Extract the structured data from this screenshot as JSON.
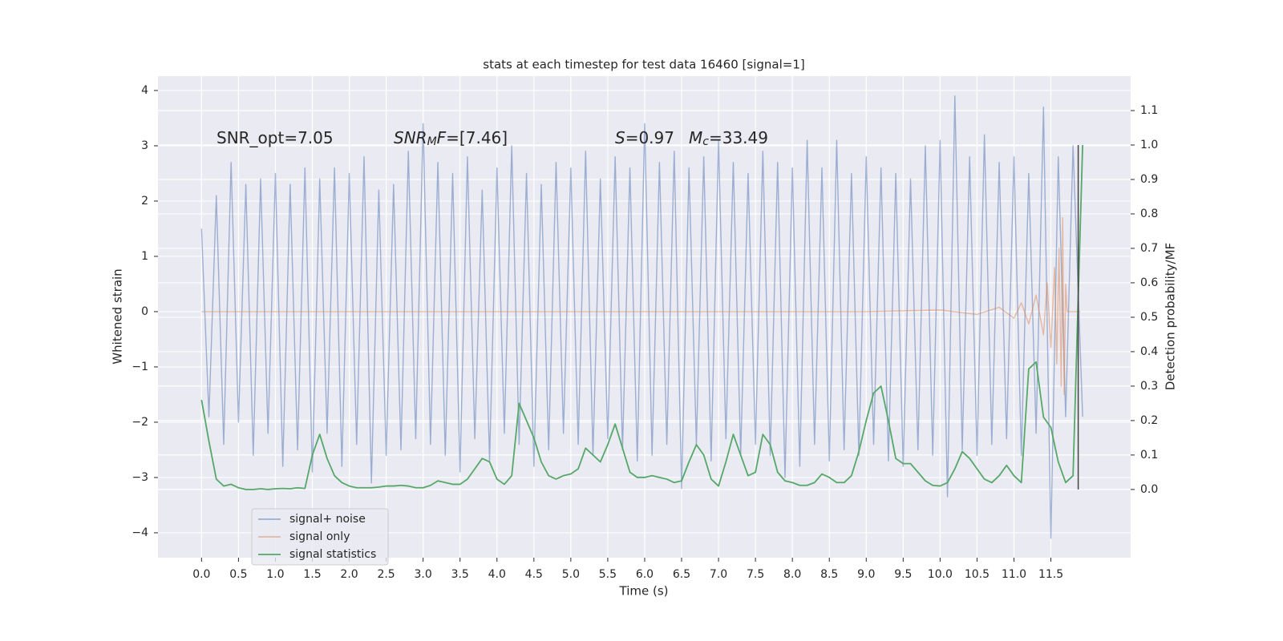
{
  "chart_data": {
    "type": "line",
    "title": "stats at each timestep for test data 16460 [signal=1]",
    "xlabel": "Time (s)",
    "ylabel": "Whitened strain",
    "y2label": "Detection probability/MF",
    "grid": true,
    "legend": "lower left",
    "xlim": [
      -0.59,
      12.58
    ],
    "ylim": [
      -4.45,
      4.26
    ],
    "y2lim": [
      -0.198,
      1.2
    ],
    "xticks": [
      {
        "value": 0,
        "label": "0.0"
      },
      0.5,
      {
        "value": 1,
        "label": "1.0"
      },
      1.5,
      {
        "value": 2,
        "label": "2.0"
      },
      2.5,
      {
        "value": 3,
        "label": "3.0"
      },
      3.5,
      {
        "value": 4,
        "label": "4.0"
      },
      4.5,
      {
        "value": 5,
        "label": "5.0"
      },
      5.5,
      {
        "value": 6,
        "label": "6.0"
      },
      6.5,
      {
        "value": 7,
        "label": "7.0"
      },
      7.5,
      {
        "value": 8,
        "label": "8.0"
      },
      8.5,
      {
        "value": 9,
        "label": "9.0"
      },
      9.5,
      {
        "value": 10,
        "label": "10.0"
      },
      10.5,
      {
        "value": 11,
        "label": "11.0"
      },
      11.5
    ],
    "yticks": [
      {
        "value": -4,
        "label": "−4"
      },
      {
        "value": -3,
        "label": "−3"
      },
      {
        "value": -2,
        "label": "−2"
      },
      {
        "value": -1,
        "label": "−1"
      },
      0,
      1,
      2,
      3,
      4
    ],
    "y2ticks": [
      {
        "value": 0,
        "label": "0.0"
      },
      0.1,
      0.2,
      0.3,
      0.4,
      0.5,
      0.6,
      0.7,
      0.8,
      0.9,
      {
        "value": 1,
        "label": "1.0"
      },
      1.1
    ],
    "x": [
      0,
      0.1,
      0.2,
      0.3,
      0.4,
      0.5,
      0.6,
      0.7,
      0.8,
      0.9,
      1,
      1.1,
      1.2,
      1.3,
      1.4,
      1.5,
      1.6,
      1.7,
      1.8,
      1.9,
      2,
      2.1,
      2.2,
      2.3,
      2.4,
      2.5,
      2.6,
      2.7,
      2.8,
      2.9,
      3,
      3.1,
      3.2,
      3.3,
      3.4,
      3.5,
      3.6,
      3.7,
      3.8,
      3.9,
      4,
      4.1,
      4.2,
      4.3,
      4.4,
      4.5,
      4.6,
      4.7,
      4.8,
      4.9,
      5,
      5.1,
      5.2,
      5.3,
      5.4,
      5.5,
      5.6,
      5.7,
      5.8,
      5.9,
      6,
      6.1,
      6.2,
      6.3,
      6.4,
      6.5,
      6.6,
      6.7,
      6.8,
      6.9,
      7,
      7.1,
      7.2,
      7.3,
      7.4,
      7.5,
      7.6,
      7.7,
      7.8,
      7.9,
      8,
      8.1,
      8.2,
      8.3,
      8.4,
      8.5,
      8.6,
      8.7,
      8.8,
      8.9,
      9,
      9.1,
      9.2,
      9.3,
      9.4,
      9.5,
      9.6,
      9.7,
      9.8,
      9.9,
      10,
      10.1,
      10.2,
      10.3,
      10.4,
      10.5,
      10.6,
      10.7,
      10.8,
      10.9,
      11,
      11.1,
      11.2,
      11.3,
      11.4,
      11.5,
      11.6,
      11.7,
      11.8,
      11.93
    ],
    "series": [
      {
        "name": "signal+ noise",
        "color": "#4c72b0",
        "values": [
          1.5,
          -1.9,
          2.1,
          -2.4,
          2.7,
          -2.0,
          2.3,
          -2.6,
          2.4,
          -2.2,
          2.5,
          -2.8,
          2.3,
          -2.5,
          2.6,
          -2.9,
          2.4,
          -2.2,
          2.6,
          -2.8,
          2.5,
          -2.4,
          2.8,
          -3.1,
          2.2,
          -2.6,
          2.3,
          -2.5,
          2.9,
          -2.3,
          3.4,
          -2.4,
          2.7,
          -2.6,
          2.5,
          -2.9,
          2.8,
          -2.3,
          2.2,
          -2.7,
          2.6,
          -2.2,
          3.0,
          -2.4,
          2.5,
          -2.8,
          2.3,
          -2.5,
          2.7,
          -2.2,
          2.6,
          -2.4,
          2.9,
          -2.6,
          2.4,
          -2.3,
          2.8,
          -2.5,
          2.6,
          -2.7,
          3.4,
          -2.6,
          2.7,
          -2.4,
          2.9,
          -3.2,
          2.6,
          -2.4,
          2.8,
          -2.7,
          3.1,
          -2.3,
          2.7,
          -2.6,
          2.5,
          -2.4,
          2.9,
          -2.6,
          2.7,
          -3.0,
          2.6,
          -2.8,
          3.1,
          -2.4,
          2.6,
          -2.7,
          3.1,
          -2.5,
          2.5,
          -2.6,
          2.8,
          -2.4,
          2.6,
          -2.7,
          2.5,
          -2.8,
          2.4,
          -2.5,
          3.0,
          -2.6,
          3.1,
          -3.35,
          3.9,
          -2.5,
          2.8,
          -2.6,
          3.2,
          -2.4,
          2.7,
          -2.3,
          2.8,
          -2.6,
          2.5,
          -2.2,
          3.7,
          -4.1,
          2.8,
          -1.9,
          3.0,
          -1.9
        ]
      },
      {
        "name": "signal only",
        "color": "#dd8452",
        "x": [
          0,
          9,
          10,
          10.5,
          10.8,
          11,
          11.1,
          11.2,
          11.3,
          11.4,
          11.45,
          11.5,
          11.55,
          11.58,
          11.61,
          11.64,
          11.66,
          11.68,
          11.7,
          11.72,
          11.9
        ],
        "values": [
          0,
          0,
          0.03,
          -0.05,
          0.08,
          -0.12,
          0.16,
          -0.22,
          0.3,
          -0.42,
          0.52,
          -0.65,
          0.8,
          -0.95,
          1.15,
          -1.35,
          1.7,
          -1.5,
          0.5,
          0,
          0
        ]
      },
      {
        "name": "signal statistics",
        "color": "#55a868",
        "axis": "y2",
        "values": [
          0.26,
          0.14,
          0.03,
          0.01,
          0.015,
          0.005,
          0,
          0,
          0.002,
          0,
          0.002,
          0.003,
          0.002,
          0.005,
          0.003,
          0.1,
          0.16,
          0.09,
          0.04,
          0.02,
          0.01,
          0.005,
          0.005,
          0.005,
          0.007,
          0.01,
          0.01,
          0.012,
          0.01,
          0.005,
          0.005,
          0.012,
          0.025,
          0.02,
          0.015,
          0.015,
          0.03,
          0.06,
          0.09,
          0.08,
          0.03,
          0.015,
          0.04,
          0.25,
          0.2,
          0.15,
          0.08,
          0.04,
          0.03,
          0.04,
          0.045,
          0.06,
          0.12,
          0.1,
          0.08,
          0.13,
          0.19,
          0.12,
          0.05,
          0.035,
          0.035,
          0.04,
          0.035,
          0.03,
          0.02,
          0.025,
          0.08,
          0.13,
          0.1,
          0.03,
          0.01,
          0.08,
          0.16,
          0.1,
          0.04,
          0.05,
          0.16,
          0.13,
          0.05,
          0.025,
          0.02,
          0.012,
          0.012,
          0.02,
          0.045,
          0.035,
          0.02,
          0.02,
          0.04,
          0.11,
          0.2,
          0.28,
          0.3,
          0.2,
          0.09,
          0.075,
          0.075,
          0.05,
          0.025,
          0.012,
          0.01,
          0.02,
          0.06,
          0.11,
          0.09,
          0.06,
          0.03,
          0.02,
          0.04,
          0.07,
          0.04,
          0.02,
          0.35,
          0.37,
          0.21,
          0.18,
          0.08,
          0.02,
          0.04,
          1.0
        ]
      }
    ],
    "vline": {
      "x": 11.87,
      "y2": [
        0,
        1
      ],
      "color": "#444444"
    },
    "annotations": [
      [
        {
          "text": "SNR_opt=7.05"
        }
      ],
      [
        {
          "text": "SNR",
          "style": "italic"
        },
        {
          "text": "M",
          "style": "italic-sub"
        },
        {
          "text": "F",
          "style": "italic"
        },
        {
          "text": "=[7.46]"
        }
      ],
      [
        {
          "text": "S",
          "style": "italic"
        },
        {
          "text": "=0.97"
        }
      ],
      [
        {
          "text": "M",
          "style": "italic"
        },
        {
          "text": "c",
          "style": "italic-sub"
        },
        {
          "text": "=33.49"
        }
      ]
    ]
  }
}
